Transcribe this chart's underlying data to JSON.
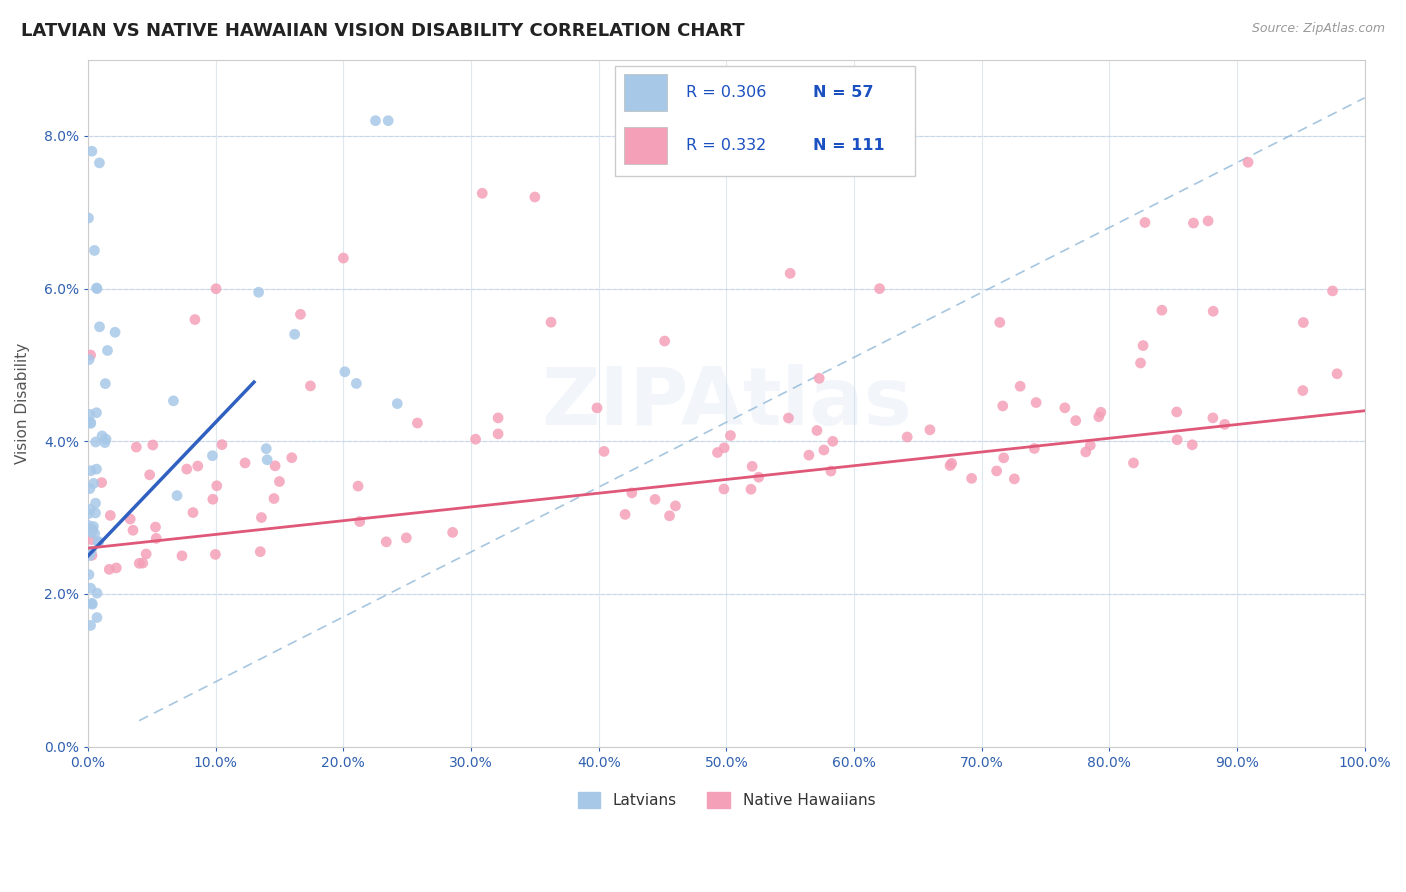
{
  "title": "LATVIAN VS NATIVE HAWAIIAN VISION DISABILITY CORRELATION CHART",
  "source": "Source: ZipAtlas.com",
  "ylabel": "Vision Disability",
  "xlim": [
    0,
    1.0
  ],
  "ylim": [
    0,
    0.09
  ],
  "x_tick_vals": [
    0.0,
    0.1,
    0.2,
    0.3,
    0.4,
    0.5,
    0.6,
    0.7,
    0.8,
    0.9,
    1.0
  ],
  "y_tick_vals": [
    0.0,
    0.02,
    0.04,
    0.06,
    0.08
  ],
  "legend_r_latvian": "R = 0.306",
  "legend_n_latvian": "N = 57",
  "legend_r_hawaiian": "R = 0.332",
  "legend_n_hawaiian": "N = 111",
  "latvian_color": "#a8c8e8",
  "hawaiian_color": "#f4a0b8",
  "latvian_line_color": "#3060c0",
  "hawaiian_line_color": "#e05878",
  "diagonal_color": "#90b8d8",
  "background_color": "#ffffff",
  "grid_color": "#dde8f0",
  "title_fontsize": 13,
  "label_fontsize": 11,
  "tick_fontsize": 10,
  "source_fontsize": 9
}
